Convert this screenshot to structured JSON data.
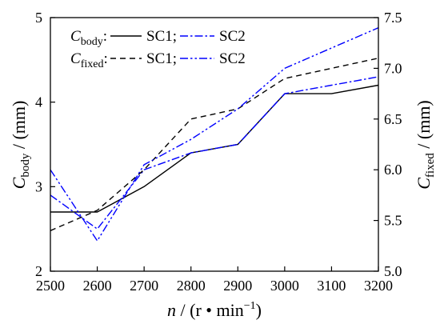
{
  "chart_data": {
    "type": "line",
    "x": [
      2500,
      2600,
      2700,
      2800,
      2900,
      3000,
      3100,
      3200
    ],
    "xlim": [
      2500,
      3200
    ],
    "xtick_labels": [
      "2500",
      "2600",
      "2700",
      "2800",
      "2900",
      "3000",
      "3100",
      "3200"
    ],
    "xlabel": {
      "symbol": "n",
      "text": " / (r • min",
      "superscript": "−1",
      "close": ")"
    },
    "y_left": {
      "lim": [
        2,
        5
      ],
      "tick_labels": [
        "2",
        "3",
        "4",
        "5"
      ],
      "label": {
        "symbol": "C",
        "subscript": "body",
        "text": " / (mm)"
      }
    },
    "y_right": {
      "lim": [
        5.0,
        7.5
      ],
      "tick_labels": [
        "5.0",
        "5.5",
        "6.0",
        "6.5",
        "7.0",
        "7.5"
      ],
      "label": {
        "symbol": "C",
        "subscript": "fixed",
        "text": " / (mm)"
      }
    },
    "grid": false,
    "series": [
      {
        "name": "SC1",
        "axis": "left",
        "color": "#000000",
        "line_style": "solid",
        "values": [
          2.7,
          2.7,
          3.0,
          3.4,
          3.5,
          4.1,
          4.1,
          4.2
        ]
      },
      {
        "name": "SC2",
        "axis": "left",
        "color": "#0000ff",
        "line_style": "dashdot",
        "values": [
          2.9,
          2.5,
          3.2,
          3.4,
          3.5,
          4.1,
          4.2,
          4.3
        ]
      },
      {
        "name": "SC1",
        "axis": "right",
        "color": "#000000",
        "line_style": "dash",
        "values": [
          5.4,
          5.6,
          6.0,
          6.5,
          6.6,
          6.9,
          7.0,
          7.1
        ]
      },
      {
        "name": "SC2",
        "axis": "right",
        "color": "#0000ff",
        "line_style": "dashdotdot",
        "values": [
          6.0,
          5.3,
          6.05,
          6.3,
          6.6,
          7.0,
          7.2,
          7.4
        ]
      }
    ],
    "legend": {
      "placement": "top-left",
      "rows": [
        {
          "symbol": "C",
          "subscript": "body",
          "colon": ":",
          "items": [
            {
              "series": 0,
              "suffix": ";"
            },
            {
              "series": 1
            }
          ]
        },
        {
          "symbol": "C",
          "subscript": "fixed",
          "colon": ":",
          "items": [
            {
              "series": 2,
              "suffix": ";"
            },
            {
              "series": 3
            }
          ]
        }
      ]
    }
  }
}
